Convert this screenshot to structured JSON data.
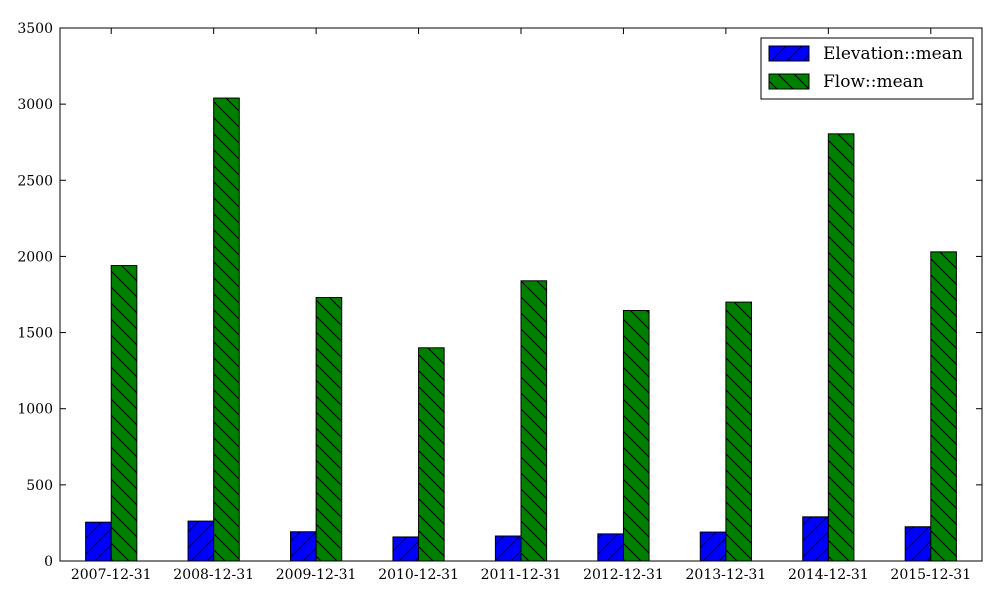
{
  "chart_data": {
    "type": "bar",
    "title": "",
    "xlabel": "",
    "ylabel": "",
    "categories": [
      "2007-12-31",
      "2008-12-31",
      "2009-12-31",
      "2010-12-31",
      "2011-12-31",
      "2012-12-31",
      "2013-12-31",
      "2014-12-31",
      "2015-12-31"
    ],
    "series": [
      {
        "name": "Elevation::mean",
        "color": "#0000ff",
        "hatch": "forward-diagonal",
        "values": [
          255,
          262,
          192,
          158,
          164,
          178,
          190,
          290,
          225
        ]
      },
      {
        "name": "Flow::mean",
        "color": "#008000",
        "hatch": "back-diagonal",
        "values": [
          1940,
          3040,
          1730,
          1400,
          1840,
          1645,
          1700,
          2805,
          2030
        ]
      }
    ],
    "ylim": [
      0,
      3500
    ],
    "yticks": [
      0,
      500,
      1000,
      1500,
      2000,
      2500,
      3000,
      3500
    ],
    "grid": false,
    "legend_position": "top-right"
  }
}
